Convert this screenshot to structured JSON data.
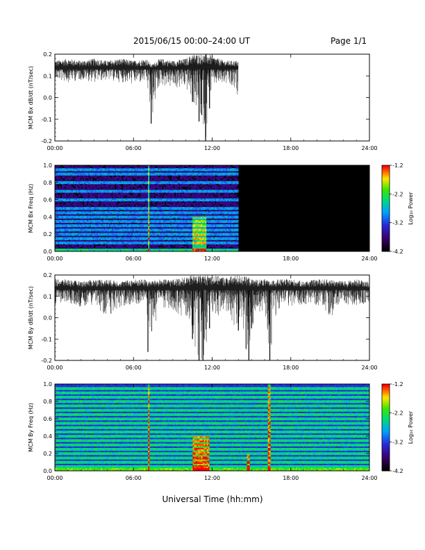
{
  "header": {
    "title": "2015/06/15  00:00–24:00 UT",
    "page": "Page 1/1"
  },
  "footer": {
    "xlabel": "Universal Time (hh:mm)"
  },
  "chart_data": [
    {
      "type": "line",
      "ylabel": "MCM Bx dB/dt (nT/sec)",
      "xlim": [
        "00:00",
        "24:00"
      ],
      "ylim": [
        -0.2,
        0.2
      ],
      "xticks": [
        "00:00",
        "06:00",
        "12:00",
        "18:00",
        "24:00"
      ],
      "yticks": [
        "-0.2",
        "-0.1",
        "0.0",
        "0.1",
        "0.2"
      ],
      "data_end_hour": 14.0,
      "baseline": 0.13,
      "x_hours": [
        0,
        1,
        2,
        3,
        4,
        5,
        6,
        7,
        7.35,
        8,
        9,
        10,
        10.5,
        11,
        11.2,
        11.5,
        11.8,
        12,
        13,
        14
      ],
      "y_max": [
        0.17,
        0.18,
        0.17,
        0.18,
        0.17,
        0.18,
        0.17,
        0.18,
        0.15,
        0.18,
        0.17,
        0.18,
        0.2,
        0.2,
        0.2,
        0.2,
        0.2,
        0.19,
        0.17,
        0.17
      ],
      "y_min": [
        0.08,
        0.07,
        0.08,
        0.07,
        0.08,
        0.07,
        0.06,
        0.07,
        -0.12,
        0.06,
        0.04,
        0.04,
        -0.02,
        -0.11,
        -0.08,
        -0.2,
        -0.05,
        0.05,
        0.06,
        0.0
      ]
    },
    {
      "type": "heatmap",
      "ylabel": "MCM Bx Freq (Hz)",
      "colorbar_label": "Log₁₀ Power",
      "colorbar_ticks": [
        "-1.2",
        "-2.2",
        "-3.2",
        "-4.2"
      ],
      "colorbar_range": [
        -4.2,
        -1.2
      ],
      "xlim": [
        "00:00",
        "24:00"
      ],
      "ylim": [
        0,
        1.0
      ],
      "xticks": [
        "00:00",
        "06:00",
        "12:00",
        "18:00",
        "24:00"
      ],
      "yticks": [
        "0.0",
        "0.2",
        "0.4",
        "0.6",
        "0.8",
        "1.0"
      ],
      "data_end_hour": 14.0,
      "harmonic_lines_hz": [
        0.1,
        0.15,
        0.2,
        0.25,
        0.3,
        0.35,
        0.4,
        0.45,
        0.5,
        0.6,
        0.7,
        0.8,
        0.9,
        0.95
      ],
      "bursts": [
        {
          "start_hour": 10.5,
          "end_hour": 11.6,
          "max_hz": 0.4
        },
        {
          "start_hour": 7.1,
          "end_hour": 7.2,
          "max_hz": 1.0
        }
      ]
    },
    {
      "type": "line",
      "ylabel": "MCM By dB/dt (nT/sec)",
      "xlim": [
        "00:00",
        "24:00"
      ],
      "ylim": [
        -0.2,
        0.2
      ],
      "xticks": [
        "00:00",
        "06:00",
        "12:00",
        "18:00",
        "24:00"
      ],
      "yticks": [
        "-0.2",
        "-0.1",
        "0.0",
        "0.1",
        "0.2"
      ],
      "data_end_hour": 24.0,
      "baseline": 0.13,
      "x_hours": [
        0,
        1,
        2,
        3,
        4,
        5,
        6,
        7,
        7.1,
        8,
        9,
        10,
        10.5,
        11,
        11.3,
        11.8,
        12,
        13,
        14,
        14.8,
        15,
        16,
        16.4,
        17,
        18,
        19,
        20,
        21,
        22,
        23,
        24
      ],
      "y_max": [
        0.18,
        0.18,
        0.17,
        0.18,
        0.18,
        0.17,
        0.18,
        0.18,
        0.17,
        0.18,
        0.18,
        0.19,
        0.2,
        0.2,
        0.2,
        0.2,
        0.2,
        0.19,
        0.2,
        0.19,
        0.18,
        0.18,
        0.17,
        0.18,
        0.18,
        0.17,
        0.18,
        0.18,
        0.17,
        0.18,
        0.17
      ],
      "y_min": [
        0.06,
        0.07,
        0.05,
        0.06,
        0.0,
        0.05,
        0.06,
        0.06,
        -0.16,
        0.04,
        0.03,
        0.0,
        -0.1,
        -0.2,
        -0.2,
        -0.05,
        0.0,
        0.02,
        -0.06,
        -0.2,
        -0.05,
        0.04,
        -0.2,
        0.04,
        0.05,
        0.06,
        0.05,
        0.0,
        0.06,
        0.05,
        0.07
      ]
    },
    {
      "type": "heatmap",
      "ylabel": "MCM By Freq (Hz)",
      "colorbar_label": "Log₁₀ Power",
      "colorbar_ticks": [
        "-1.2",
        "-2.2",
        "-3.2",
        "-4.2"
      ],
      "colorbar_range": [
        -4.2,
        -1.2
      ],
      "xlim": [
        "00:00",
        "24:00"
      ],
      "ylim": [
        0,
        1.0
      ],
      "xticks": [
        "00:00",
        "06:00",
        "12:00",
        "18:00",
        "24:00"
      ],
      "yticks": [
        "0.0",
        "0.2",
        "0.4",
        "0.6",
        "0.8",
        "1.0"
      ],
      "data_end_hour": 24.0,
      "harmonic_lines_hz": [
        0.05,
        0.1,
        0.15,
        0.2,
        0.25,
        0.3,
        0.35,
        0.4,
        0.45,
        0.5,
        0.55,
        0.6,
        0.65,
        0.7,
        0.75,
        0.8,
        0.85,
        0.9,
        0.95
      ],
      "bursts": [
        {
          "start_hour": 10.5,
          "end_hour": 11.8,
          "max_hz": 0.4
        },
        {
          "start_hour": 16.3,
          "end_hour": 16.45,
          "max_hz": 1.0
        },
        {
          "start_hour": 7.1,
          "end_hour": 7.2,
          "max_hz": 1.0
        },
        {
          "start_hour": 14.7,
          "end_hour": 14.9,
          "max_hz": 0.2
        }
      ]
    }
  ]
}
